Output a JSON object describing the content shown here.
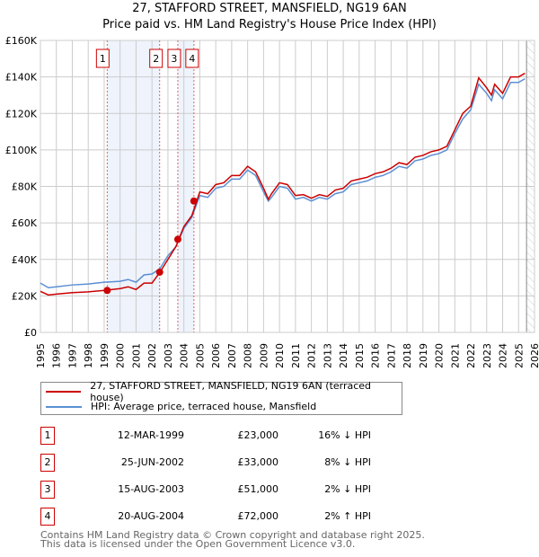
{
  "title_line1": "27, STAFFORD STREET, MANSFIELD, NG19 6AN",
  "title_line2": "Price paid vs. HM Land Registry's House Price Index (HPI)",
  "colors": {
    "property": "#cc0000",
    "hpi": "#5b8fd4",
    "shade": "#eef3fc",
    "grid": "#cccccc"
  },
  "chart_data": {
    "type": "line",
    "xlim": [
      1995,
      2026
    ],
    "ylim": [
      0,
      160000
    ],
    "x_ticks": [
      "1995",
      "1996",
      "1997",
      "1998",
      "1999",
      "2000",
      "2001",
      "2002",
      "2003",
      "2004",
      "2005",
      "2006",
      "2007",
      "2008",
      "2009",
      "2010",
      "2011",
      "2012",
      "2013",
      "2014",
      "2015",
      "2016",
      "2017",
      "2018",
      "2019",
      "2020",
      "2021",
      "2022",
      "2023",
      "2024",
      "2025",
      "2026"
    ],
    "y_ticks": [
      {
        "v": 0,
        "label": "£0"
      },
      {
        "v": 20000,
        "label": "£20K"
      },
      {
        "v": 40000,
        "label": "£40K"
      },
      {
        "v": 60000,
        "label": "£60K"
      },
      {
        "v": 80000,
        "label": "£80K"
      },
      {
        "v": 100000,
        "label": "£100K"
      },
      {
        "v": 120000,
        "label": "£120K"
      },
      {
        "v": 140000,
        "label": "£140K"
      },
      {
        "v": 160000,
        "label": "£160K"
      }
    ],
    "forecast_start": 2025.5,
    "x": [
      1995,
      1995.5,
      1996,
      1997,
      1998,
      1999,
      2000,
      2000.5,
      2001,
      2001.5,
      2002,
      2002.5,
      2003,
      2003.5,
      2004,
      2004.5,
      2005,
      2005.5,
      2006,
      2006.5,
      2007,
      2007.5,
      2008,
      2008.5,
      2009,
      2009.3,
      2009.5,
      2010,
      2010.5,
      2011,
      2011.5,
      2012,
      2012.5,
      2013,
      2013.5,
      2014,
      2014.5,
      2015,
      2015.5,
      2016,
      2016.5,
      2017,
      2017.5,
      2018,
      2018.5,
      2019,
      2019.5,
      2020,
      2020.5,
      2021,
      2021.5,
      2022,
      2022.5,
      2023,
      2023.3,
      2023.5,
      2024,
      2024.5,
      2025,
      2025.4
    ],
    "series": [
      {
        "name": "27, STAFFORD STREET, MANSFIELD, NG19 6AN (terraced house)",
        "color": "#cc0000",
        "values": [
          22500,
          20500,
          21000,
          21800,
          22200,
          23000,
          24000,
          25000,
          23500,
          27000,
          27000,
          33000,
          40000,
          47000,
          58000,
          64000,
          77000,
          76000,
          81000,
          82000,
          86000,
          86000,
          91000,
          88000,
          79000,
          73000,
          76000,
          82000,
          81000,
          75000,
          75500,
          73500,
          75500,
          74500,
          78000,
          79000,
          83000,
          84000,
          85000,
          87000,
          88000,
          90000,
          93000,
          92000,
          96000,
          97000,
          99000,
          100000,
          102000,
          111000,
          120000,
          124000,
          139500,
          134000,
          130000,
          136000,
          131000,
          140000,
          140000,
          142000
        ]
      },
      {
        "name": "HPI: Average price, terraced house, Mansfield",
        "color": "#5b8fd4",
        "values": [
          27000,
          24500,
          25000,
          26000,
          26500,
          27500,
          28000,
          29000,
          27500,
          31500,
          32000,
          35000,
          42000,
          47000,
          57000,
          63000,
          75000,
          74000,
          79000,
          80000,
          84000,
          84000,
          89000,
          86000,
          77000,
          72000,
          74000,
          80000,
          79000,
          73000,
          74000,
          72000,
          74000,
          73000,
          76000,
          77000,
          81000,
          82000,
          83000,
          85000,
          86000,
          88000,
          91000,
          90000,
          94000,
          95000,
          97000,
          98000,
          100000,
          109000,
          117000,
          122000,
          136000,
          131000,
          127000,
          133000,
          128000,
          137000,
          137000,
          139000
        ]
      }
    ],
    "sales": [
      {
        "id": "1",
        "x": 1999.19,
        "date": "12-MAR-1999",
        "price": 23000,
        "price_label": "£23,000",
        "hpi": "16% ↓ HPI"
      },
      {
        "id": "2",
        "x": 2002.48,
        "date": "25-JUN-2002",
        "price": 33000,
        "price_label": "£33,000",
        "hpi": "8% ↓ HPI"
      },
      {
        "id": "3",
        "x": 2003.62,
        "date": "15-AUG-2003",
        "price": 51000,
        "price_label": "£51,000",
        "hpi": "2% ↓ HPI"
      },
      {
        "id": "4",
        "x": 2004.63,
        "date": "20-AUG-2004",
        "price": 72000,
        "price_label": "£72,000",
        "hpi": "2% ↑ HPI"
      }
    ],
    "shaded_ranges": [
      [
        1999.19,
        2002.48
      ],
      [
        2003.62,
        2004.63
      ]
    ]
  },
  "legend": {
    "property": "27, STAFFORD STREET, MANSFIELD, NG19 6AN (terraced house)",
    "hpi": "HPI: Average price, terraced house, Mansfield"
  },
  "footer": {
    "line1": "Contains HM Land Registry data © Crown copyright and database right 2025.",
    "line2": "This data is licensed under the Open Government Licence v3.0."
  }
}
